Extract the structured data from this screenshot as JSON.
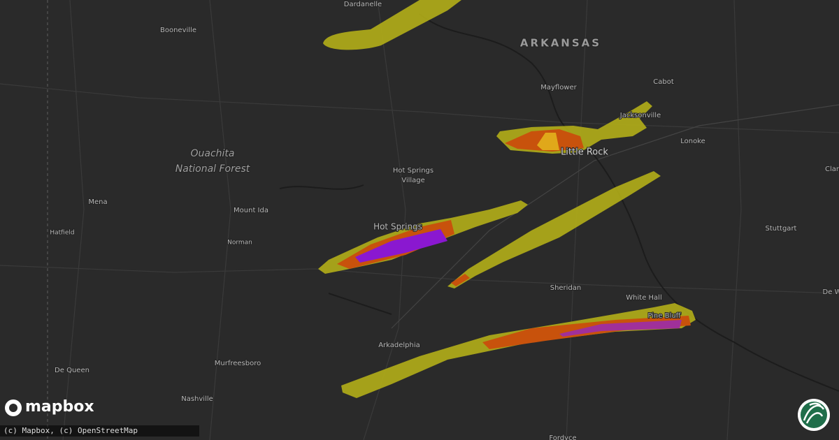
{
  "labels": [
    "Dardanelle",
    "Booneville",
    "ARKANSAS",
    "Mayflower",
    "Cabot",
    "Jacksonville",
    "Little Rock",
    "Lonoke",
    "Clar",
    "Ouachita",
    "National Forest",
    "Hot Springs",
    "Village",
    "Mena",
    "Mount Ida",
    "Hatfield",
    "Norman",
    "Hot Springs",
    "Stuttgart",
    "De W",
    "Sheridan",
    "White Hall",
    "Pine Bluff",
    "Arkadelphia",
    "Murfreesboro",
    "De Queen",
    "Nashville",
    "Fordyce"
  ],
  "brand": "mapbox",
  "attribution": "(c) Mapbox, (c) OpenStreetMap"
}
